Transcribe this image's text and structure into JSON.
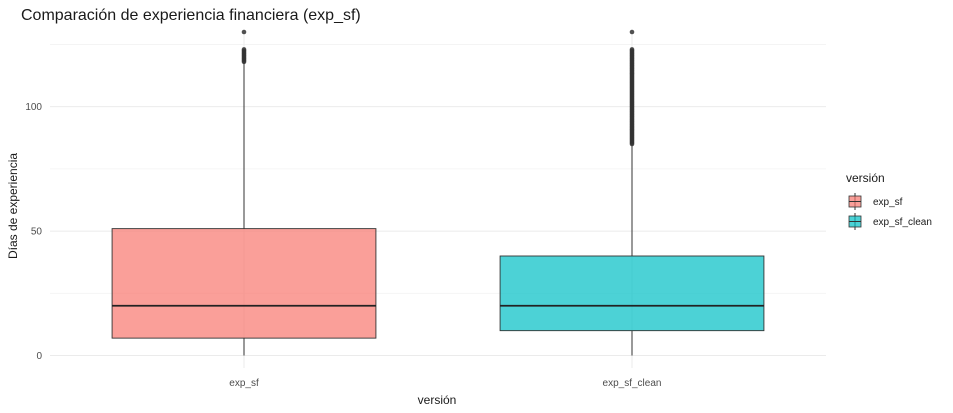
{
  "chart_data": {
    "type": "boxplot",
    "title": "Comparación de experiencia financiera (exp_sf)",
    "xlabel": "versión",
    "ylabel": "Días de experiencia",
    "ylim": [
      -5,
      130
    ],
    "yticks": [
      0,
      50,
      100
    ],
    "grid": true,
    "legend": {
      "title": "versión",
      "position": "right",
      "entries": [
        "exp_sf",
        "exp_sf_clean"
      ]
    },
    "categories": [
      "exp_sf",
      "exp_sf_clean"
    ],
    "series": [
      {
        "name": "exp_sf",
        "color": "#F8766D",
        "min": 0,
        "q1": 7,
        "median": 20,
        "q3": 51,
        "whisker_high": 118,
        "outliers_range": [
          118,
          123
        ],
        "outliers_extra": [
          130
        ]
      },
      {
        "name": "exp_sf_clean",
        "color": "#00BFC4",
        "min": 0,
        "q1": 10,
        "median": 20,
        "q3": 40,
        "whisker_high": 85,
        "outliers_range": [
          85,
          123
        ],
        "outliers_extra": [
          130
        ]
      }
    ]
  }
}
